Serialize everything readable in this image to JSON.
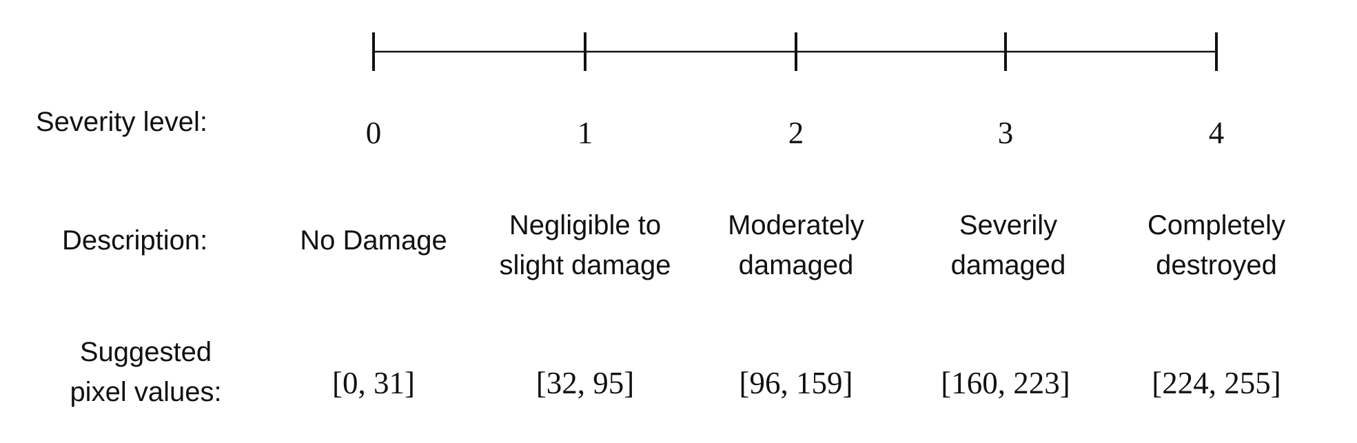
{
  "labels": {
    "severity": "Severity level:",
    "description": "Description:",
    "pixel_line1": "Suggested",
    "pixel_line2": "pixel values:"
  },
  "levels": [
    {
      "level": "0",
      "description": [
        "No Damage"
      ],
      "range": "[0, 31]"
    },
    {
      "level": "1",
      "description": [
        "Negligible to",
        "slight damage"
      ],
      "range": "[32, 95]"
    },
    {
      "level": "2",
      "description": [
        "Moderately",
        "damaged"
      ],
      "range": "[96, 159]"
    },
    {
      "level": "3",
      "description": [
        "Severily",
        "damaged"
      ],
      "range": "[160, 223]"
    },
    {
      "level": "4",
      "description": [
        "Completely",
        "destroyed"
      ],
      "range": "[224, 255]"
    }
  ],
  "colors": {
    "line": "#111111",
    "text": "#111111"
  }
}
